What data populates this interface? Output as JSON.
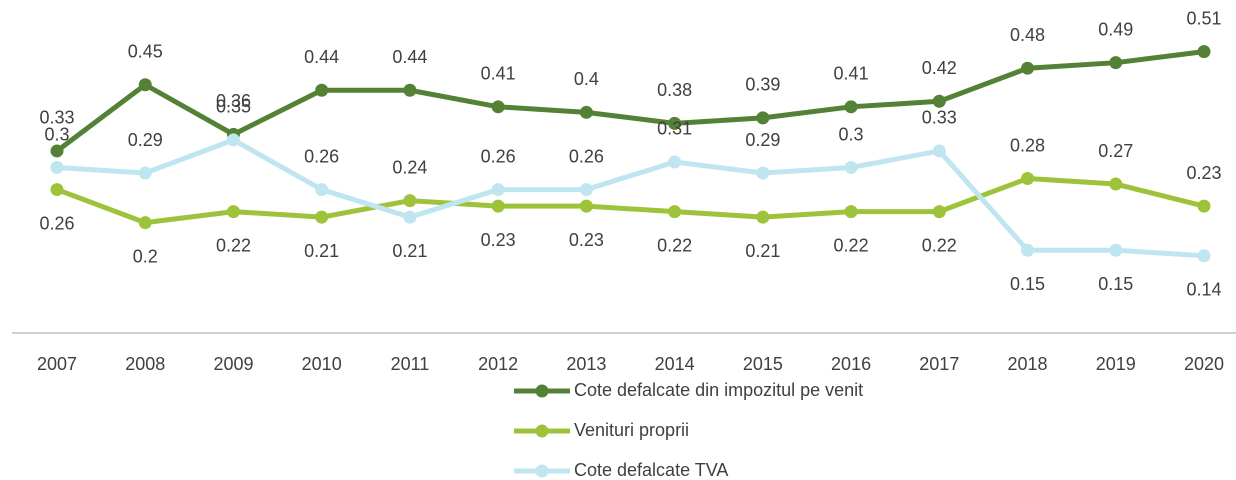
{
  "chart_data": {
    "type": "line",
    "categories": [
      "2007",
      "2008",
      "2009",
      "2010",
      "2011",
      "2012",
      "2013",
      "2014",
      "2015",
      "2016",
      "2017",
      "2018",
      "2019",
      "2020"
    ],
    "ylim": [
      0,
      0.6
    ],
    "legend": "bottom",
    "series": [
      {
        "name": "Cote defalcate din impozitul pe venit",
        "color": "#538135",
        "values": [
          0.33,
          0.45,
          0.36,
          0.44,
          0.44,
          0.41,
          0.4,
          0.38,
          0.39,
          0.41,
          0.42,
          0.48,
          0.49,
          0.51
        ]
      },
      {
        "name": "Venituri proprii",
        "color": "#9dc33b",
        "values": [
          0.26,
          0.2,
          0.22,
          0.21,
          0.24,
          0.23,
          0.23,
          0.22,
          0.21,
          0.22,
          0.22,
          0.28,
          0.27,
          0.23
        ]
      },
      {
        "name": "Cote defalcate TVA",
        "color": "#bfe6f0",
        "values": [
          0.3,
          0.29,
          0.35,
          0.26,
          0.21,
          0.26,
          0.26,
          0.31,
          0.29,
          0.3,
          0.33,
          0.15,
          0.15,
          0.14
        ]
      }
    ]
  }
}
